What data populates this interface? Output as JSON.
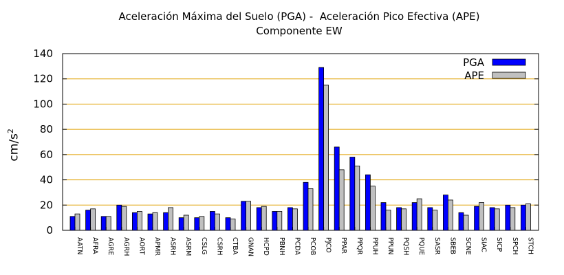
{
  "chart_data": {
    "type": "bar",
    "title": "Aceleración Máxima del Suelo (PGA) -  Aceleración Pico Efectiva (APE)",
    "subtitle": "Componente EW",
    "xlabel": "",
    "ylabel": "cm/s",
    "ylabel_sup": "2",
    "ylim": [
      0,
      140
    ],
    "yticks": [
      0,
      20,
      40,
      60,
      80,
      100,
      120,
      140
    ],
    "grid": "horizontal",
    "legend_position": "top-right",
    "categories": [
      "AATN",
      "AFRA",
      "AGRE",
      "AGRH",
      "AORT",
      "APMR",
      "ASRH",
      "ASRM",
      "CSLG",
      "CSRH",
      "CTBA",
      "GNAN",
      "HCPD",
      "PBNH",
      "PCDA",
      "PCOB",
      "PJCO",
      "PPAR",
      "PPQR",
      "PPUH",
      "PPUN",
      "PQSH",
      "PQUE",
      "SASR",
      "SBEB",
      "SCNE",
      "SIAC",
      "SICP",
      "SPCH",
      "STCH"
    ],
    "series": [
      {
        "name": "PGA",
        "color": "#0000ff",
        "values": [
          11,
          16,
          11,
          20,
          14,
          13,
          14,
          10,
          10,
          15,
          10,
          23,
          18,
          15,
          18,
          38,
          129,
          66,
          58,
          44,
          22,
          18,
          22,
          18,
          28,
          14,
          19,
          18,
          20,
          20
        ]
      },
      {
        "name": "APE",
        "color": "#c0c0c0",
        "values": [
          13,
          17,
          11,
          19,
          15,
          14,
          18,
          12,
          11,
          13,
          9,
          23,
          19,
          15,
          17,
          33,
          115,
          48,
          51,
          35,
          16,
          17,
          25,
          16,
          24,
          12,
          22,
          17,
          18,
          21
        ]
      }
    ],
    "colors": {
      "grid": "#e0a000",
      "axis": "#000000"
    }
  }
}
